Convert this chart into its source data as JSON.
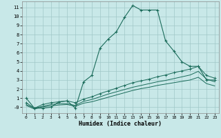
{
  "xlabel": "Humidex (Indice chaleur)",
  "bg_color": "#c8e8e8",
  "grid_color": "#a0c8c8",
  "line_color": "#1a6b5a",
  "xlim": [
    -0.5,
    23.5
  ],
  "ylim": [
    -0.65,
    11.65
  ],
  "xticks": [
    0,
    1,
    2,
    3,
    4,
    5,
    6,
    7,
    8,
    9,
    10,
    11,
    12,
    13,
    14,
    15,
    16,
    17,
    18,
    19,
    20,
    21,
    22,
    23
  ],
  "yticks": [
    0,
    1,
    2,
    3,
    4,
    5,
    6,
    7,
    8,
    9,
    10,
    11
  ],
  "ytick_labels": [
    "-0",
    "1",
    "2",
    "3",
    "4",
    "5",
    "6",
    "7",
    "8",
    "9",
    "10",
    "11"
  ],
  "series1_x": [
    0,
    1,
    2,
    3,
    4,
    5,
    6,
    7,
    8,
    9,
    10,
    11,
    12,
    13,
    14,
    15,
    16,
    17,
    18,
    19,
    20,
    21,
    22,
    23
  ],
  "series1_y": [
    1.0,
    -0.1,
    -0.1,
    0.0,
    0.6,
    0.7,
    -0.1,
    2.8,
    3.5,
    6.5,
    7.5,
    8.3,
    9.9,
    11.2,
    10.7,
    10.7,
    10.7,
    7.3,
    6.2,
    5.0,
    4.5,
    4.5,
    3.0,
    3.0
  ],
  "series2_x": [
    0,
    1,
    2,
    3,
    4,
    5,
    6,
    7,
    8,
    9,
    10,
    11,
    12,
    13,
    14,
    15,
    16,
    17,
    18,
    19,
    20,
    21,
    22,
    23
  ],
  "series2_y": [
    0.5,
    -0.1,
    0.3,
    0.5,
    0.6,
    0.7,
    0.5,
    0.9,
    1.15,
    1.5,
    1.8,
    2.1,
    2.4,
    2.7,
    2.9,
    3.1,
    3.35,
    3.55,
    3.8,
    4.0,
    4.2,
    4.5,
    3.5,
    3.2
  ],
  "series3_x": [
    0,
    1,
    2,
    3,
    4,
    5,
    6,
    7,
    8,
    9,
    10,
    11,
    12,
    13,
    14,
    15,
    16,
    17,
    18,
    19,
    20,
    21,
    22,
    23
  ],
  "series3_y": [
    0.3,
    -0.1,
    0.1,
    0.3,
    0.4,
    0.4,
    0.2,
    0.65,
    0.85,
    1.15,
    1.45,
    1.7,
    1.95,
    2.2,
    2.4,
    2.6,
    2.8,
    2.95,
    3.15,
    3.35,
    3.55,
    3.95,
    3.1,
    2.8
  ],
  "series4_x": [
    0,
    1,
    2,
    3,
    4,
    5,
    6,
    7,
    8,
    9,
    10,
    11,
    12,
    13,
    14,
    15,
    16,
    17,
    18,
    19,
    20,
    21,
    22,
    23
  ],
  "series4_y": [
    0.2,
    -0.2,
    0.05,
    0.15,
    0.25,
    0.3,
    0.1,
    0.45,
    0.6,
    0.85,
    1.1,
    1.35,
    1.6,
    1.85,
    2.05,
    2.2,
    2.4,
    2.55,
    2.7,
    2.85,
    3.0,
    3.3,
    2.6,
    2.35
  ]
}
